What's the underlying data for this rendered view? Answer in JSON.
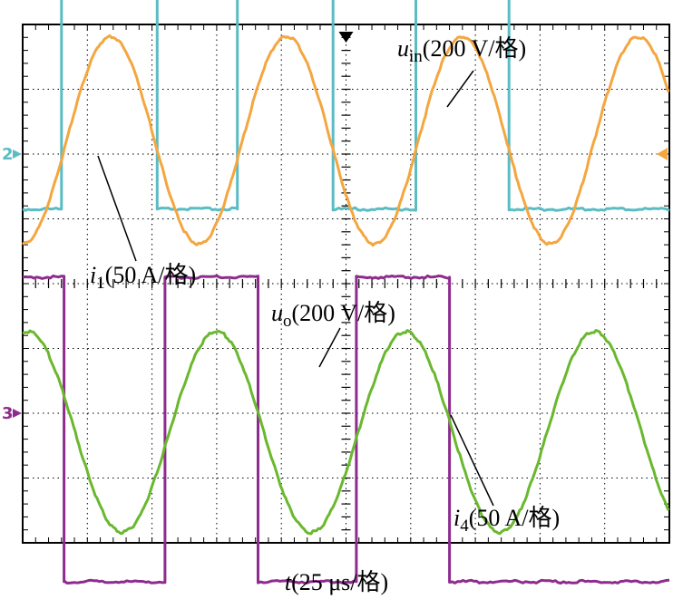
{
  "chart_data": {
    "type": "line",
    "title": "",
    "xlabel": {
      "var": "t",
      "unit": "(25 μs/格)"
    },
    "x_divisions": 10,
    "y_divisions": 8,
    "x_range_us": [
      0,
      250
    ],
    "grid": true,
    "series": [
      {
        "name": "u_in",
        "label_main": "u",
        "label_sub": "in",
        "label_unit": "(200 V/格)",
        "color": "#5bbcc4",
        "kind": "square",
        "channel": "upper",
        "high_div": -2.55,
        "low_div": 0.85,
        "x_us": [
          0,
          15,
          15,
          52,
          52,
          83,
          83,
          120,
          120,
          152,
          152,
          188,
          188,
          250
        ],
        "y_div": [
          0.85,
          0.85,
          -2.55,
          -2.55,
          0.85,
          0.85,
          -2.55,
          -2.55,
          0.85,
          0.85,
          -2.55,
          -2.55,
          0.85,
          0.85
        ]
      },
      {
        "name": "i_1",
        "label_main": "i",
        "label_sub": "1",
        "label_unit": "(50 A/格)",
        "color": "#f4a640",
        "kind": "sine",
        "channel": "upper",
        "amplitude_div": 1.6,
        "center_div": -0.2,
        "period_us": 68,
        "peak_at_us": 34
      },
      {
        "name": "u_o",
        "label_main": "u",
        "label_sub": "o",
        "label_unit": "(200 V/格)",
        "color": "#8e2c8e",
        "kind": "square",
        "channel": "lower",
        "high_div": -2.1,
        "low_div": 2.6,
        "x_us": [
          0,
          16,
          16,
          55,
          55,
          91,
          91,
          129,
          129,
          165,
          165,
          250
        ],
        "y_div": [
          -2.1,
          -2.1,
          2.6,
          2.6,
          -2.1,
          -2.1,
          2.6,
          2.6,
          -2.1,
          -2.1,
          2.6,
          2.6
        ]
      },
      {
        "name": "i_4",
        "label_main": "i",
        "label_sub": "4",
        "label_unit": "(50 A/格)",
        "color": "#6ab82e",
        "kind": "sine",
        "channel": "lower",
        "amplitude_div": 1.55,
        "center_div": 0.3,
        "period_us": 73,
        "peak_at_us": 75
      }
    ],
    "channel_markers": [
      {
        "text": "2",
        "color": "#5bbcc4",
        "y_div": 0
      },
      {
        "text": "3",
        "color": "#8e2c8e",
        "y_div": 0
      }
    ]
  }
}
